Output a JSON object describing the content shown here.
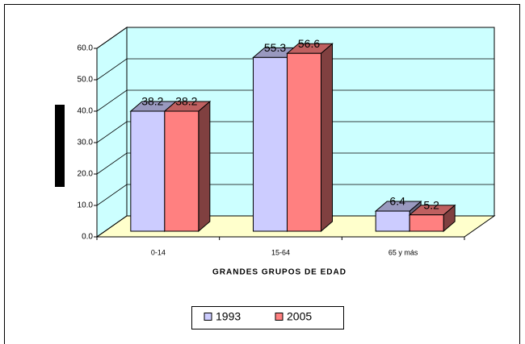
{
  "chart_data": {
    "type": "bar3d",
    "xlabel": "GRANDES GRUPOS DE EDAD",
    "categories": [
      "0-14",
      "15-64",
      "65 y más"
    ],
    "series": [
      {
        "name": "1993",
        "color": "#ccccff",
        "values": [
          38.2,
          55.3,
          6.4
        ]
      },
      {
        "name": "2005",
        "color": "#ff8080",
        "values": [
          38.2,
          56.6,
          5.2
        ]
      }
    ],
    "ylim": [
      0,
      60
    ],
    "yticks": [
      {
        "value": 0,
        "label": "0.0"
      },
      {
        "value": 10,
        "label": "10.0"
      },
      {
        "value": 20,
        "label": "20.0"
      },
      {
        "value": 30,
        "label": "30.0"
      },
      {
        "value": 40,
        "label": "40.0"
      },
      {
        "value": 50,
        "label": "50.0"
      },
      {
        "value": 60,
        "label": "60.0"
      }
    ],
    "grid": true,
    "wall_color": "#ccffff",
    "floor_color": "#ffffcc",
    "legend": "bottom"
  }
}
